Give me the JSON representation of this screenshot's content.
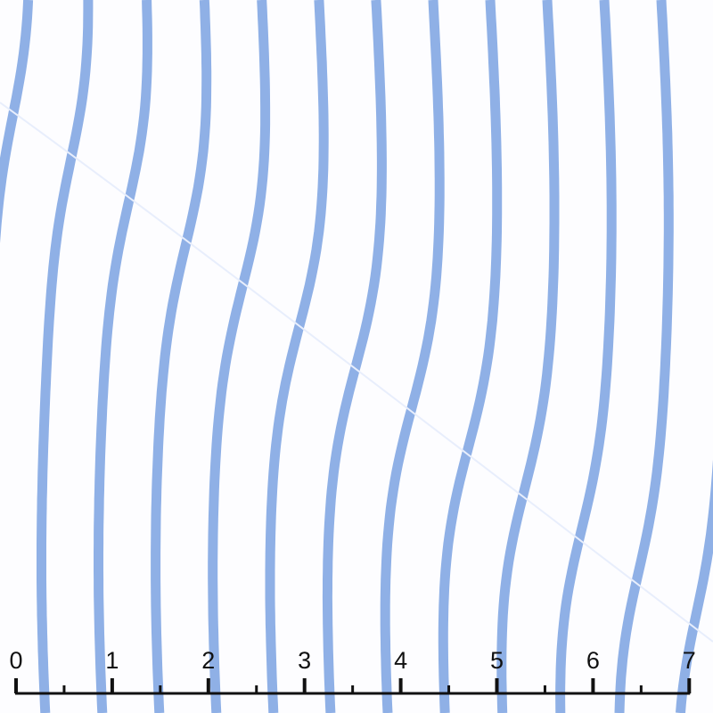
{
  "image": {
    "subject": "fabric-swatch",
    "colors": {
      "background": "#fdfdff",
      "stripe": "#8fb0e6",
      "ruler": "#111111"
    }
  },
  "ruler": {
    "labels": [
      "0",
      "1",
      "2",
      "3",
      "4",
      "5",
      "6",
      "7"
    ]
  }
}
